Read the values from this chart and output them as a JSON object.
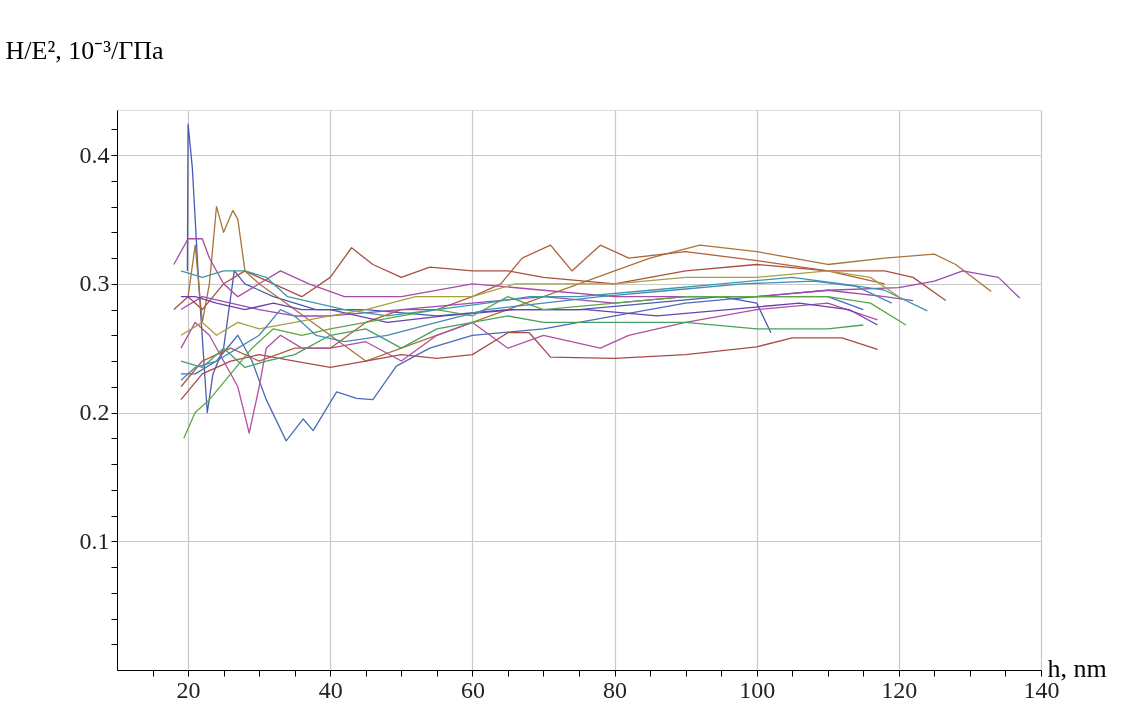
{
  "chart_data": {
    "type": "line",
    "xlabel": "h, nm",
    "ylabel": "H/E², 10⁻³/ГПа",
    "xlim": [
      10,
      140
    ],
    "ylim": [
      0,
      0.435
    ],
    "xticks": [
      {
        "value": 15,
        "label": null
      },
      20,
      {
        "value": 25,
        "label": null
      },
      {
        "value": 30,
        "label": null
      },
      {
        "value": 35,
        "label": null
      },
      40,
      {
        "value": 45,
        "label": null
      },
      {
        "value": 50,
        "label": null
      },
      {
        "value": 55,
        "label": null
      },
      60,
      {
        "value": 65,
        "label": null
      },
      {
        "value": 70,
        "label": null
      },
      {
        "value": 75,
        "label": null
      },
      80,
      {
        "value": 85,
        "label": null
      },
      {
        "value": 90,
        "label": null
      },
      {
        "value": 95,
        "label": null
      },
      100,
      {
        "value": 105,
        "label": null
      },
      {
        "value": 110,
        "label": null
      },
      {
        "value": 115,
        "label": null
      },
      120,
      {
        "value": 125,
        "label": null
      },
      {
        "value": 130,
        "label": null
      },
      {
        "value": 135,
        "label": null
      },
      140
    ],
    "yticks": [
      {
        "value": 0.02,
        "label": null
      },
      {
        "value": 0.04,
        "label": null
      },
      {
        "value": 0.06,
        "label": null
      },
      {
        "value": 0.08,
        "label": null
      },
      0.1,
      {
        "value": 0.12,
        "label": null
      },
      {
        "value": 0.14,
        "label": null
      },
      {
        "value": 0.16,
        "label": null
      },
      {
        "value": 0.18,
        "label": null
      },
      0.2,
      {
        "value": 0.22,
        "label": null
      },
      {
        "value": 0.24,
        "label": null
      },
      {
        "value": 0.26,
        "label": null
      },
      {
        "value": 0.28,
        "label": null
      },
      0.3,
      {
        "value": 0.32,
        "label": null
      },
      {
        "value": 0.34,
        "label": null
      },
      {
        "value": 0.36,
        "label": null
      },
      {
        "value": 0.38,
        "label": null
      },
      0.4,
      {
        "value": 0.42,
        "label": null
      }
    ],
    "grid": true,
    "legend": false,
    "marker": "none",
    "line_style": "solid",
    "series": [
      {
        "color": "#4a5ab0",
        "x": [
          19.9,
          20,
          20.6,
          21.5,
          22.7,
          23.5,
          25,
          26.5,
          28,
          32,
          38,
          45,
          55,
          65,
          75,
          85,
          95,
          100,
          102
        ],
        "values": [
          0.31,
          0.424,
          0.39,
          0.3,
          0.2,
          0.23,
          0.25,
          0.31,
          0.3,
          0.29,
          0.28,
          0.28,
          0.275,
          0.28,
          0.28,
          0.285,
          0.29,
          0.285,
          0.262
        ]
      },
      {
        "color": "#4a6cb8",
        "x": [
          19,
          21,
          24,
          27,
          29,
          31,
          33.8,
          36.2,
          37.6,
          40.9,
          43.7,
          46,
          49.3,
          54,
          60,
          70,
          80,
          90,
          100,
          110,
          115
        ],
        "values": [
          0.23,
          0.23,
          0.24,
          0.26,
          0.24,
          0.21,
          0.178,
          0.195,
          0.186,
          0.216,
          0.211,
          0.21,
          0.236,
          0.25,
          0.26,
          0.265,
          0.275,
          0.285,
          0.29,
          0.29,
          0.28
        ]
      },
      {
        "color": "#a8743a",
        "x": [
          20,
          21,
          22,
          23,
          24,
          25,
          26.3,
          27,
          28,
          30,
          35,
          40,
          45,
          50,
          60,
          70,
          75,
          80,
          85,
          92,
          100,
          110,
          118,
          125,
          128,
          133
        ],
        "values": [
          0.29,
          0.33,
          0.27,
          0.3,
          0.36,
          0.34,
          0.357,
          0.35,
          0.31,
          0.3,
          0.28,
          0.26,
          0.24,
          0.25,
          0.27,
          0.29,
          0.3,
          0.31,
          0.32,
          0.33,
          0.325,
          0.315,
          0.32,
          0.323,
          0.315,
          0.294
        ]
      },
      {
        "color": "#a8503f",
        "x": [
          18,
          20,
          22,
          25,
          28,
          32,
          36,
          40,
          43,
          46,
          50,
          54,
          60,
          65,
          70,
          80,
          90,
          100,
          110,
          118,
          122,
          126.6
        ],
        "values": [
          0.28,
          0.29,
          0.28,
          0.3,
          0.31,
          0.3,
          0.29,
          0.305,
          0.328,
          0.315,
          0.305,
          0.313,
          0.31,
          0.31,
          0.305,
          0.3,
          0.31,
          0.315,
          0.31,
          0.31,
          0.305,
          0.287
        ]
      },
      {
        "color": "#b0603a",
        "x": [
          19,
          22,
          26,
          30,
          35,
          40,
          45,
          50,
          55,
          60,
          64,
          67,
          71,
          74,
          78,
          82,
          90,
          100,
          110,
          118
        ],
        "values": [
          0.22,
          0.24,
          0.25,
          0.24,
          0.25,
          0.25,
          0.27,
          0.28,
          0.28,
          0.29,
          0.3,
          0.32,
          0.33,
          0.31,
          0.33,
          0.32,
          0.325,
          0.318,
          0.31,
          0.3
        ]
      },
      {
        "color": "#a84a4a",
        "x": [
          19,
          22,
          26,
          30,
          35,
          40,
          45,
          50,
          55,
          60,
          65,
          68,
          71,
          80,
          90,
          100,
          105,
          112,
          117
        ],
        "values": [
          0.21,
          0.23,
          0.24,
          0.245,
          0.24,
          0.235,
          0.24,
          0.245,
          0.242,
          0.245,
          0.262,
          0.262,
          0.243,
          0.242,
          0.245,
          0.251,
          0.258,
          0.258,
          0.249
        ]
      },
      {
        "color": "#a84aa8",
        "x": [
          18,
          20,
          22,
          23,
          25,
          27,
          30,
          33,
          37,
          42,
          50,
          60,
          70,
          80,
          90,
          100,
          110,
          118,
          122
        ],
        "values": [
          0.315,
          0.335,
          0.335,
          0.32,
          0.3,
          0.29,
          0.3,
          0.31,
          0.3,
          0.29,
          0.29,
          0.3,
          0.295,
          0.29,
          0.29,
          0.29,
          0.295,
          0.29,
          0.287
        ]
      },
      {
        "color": "#b04fa0",
        "x": [
          19,
          21,
          23,
          25,
          27,
          28.6,
          30,
          31,
          33,
          36,
          40,
          45,
          50,
          55,
          60,
          65,
          70,
          78,
          82,
          90,
          100,
          110,
          117
        ],
        "values": [
          0.25,
          0.27,
          0.26,
          0.24,
          0.22,
          0.184,
          0.22,
          0.25,
          0.26,
          0.25,
          0.25,
          0.255,
          0.24,
          0.26,
          0.27,
          0.25,
          0.26,
          0.25,
          0.26,
          0.27,
          0.28,
          0.285,
          0.272
        ]
      },
      {
        "color": "#9a4ab8",
        "x": [
          19,
          22,
          26,
          30,
          35,
          40,
          50,
          60,
          70,
          80,
          90,
          100,
          110,
          120,
          125,
          129,
          134,
          137
        ],
        "values": [
          0.28,
          0.29,
          0.285,
          0.28,
          0.275,
          0.275,
          0.28,
          0.285,
          0.29,
          0.285,
          0.29,
          0.29,
          0.295,
          0.297,
          0.302,
          0.31,
          0.305,
          0.289
        ]
      },
      {
        "color": "#6a40b0",
        "x": [
          19,
          21,
          24,
          28,
          32,
          36,
          40,
          48,
          56,
          66,
          76,
          86,
          96,
          106,
          113,
          117
        ],
        "values": [
          0.29,
          0.29,
          0.285,
          0.28,
          0.285,
          0.28,
          0.28,
          0.27,
          0.275,
          0.28,
          0.28,
          0.275,
          0.28,
          0.285,
          0.28,
          0.268
        ]
      },
      {
        "color": "#5aa848",
        "x": [
          19.4,
          21,
          23,
          26,
          29,
          32,
          36,
          40,
          45,
          50,
          55,
          60,
          65,
          70,
          80,
          90,
          100,
          110,
          116,
          121
        ],
        "values": [
          0.18,
          0.2,
          0.21,
          0.23,
          0.25,
          0.265,
          0.26,
          0.265,
          0.27,
          0.275,
          0.28,
          0.275,
          0.29,
          0.28,
          0.285,
          0.29,
          0.29,
          0.29,
          0.285,
          0.268
        ]
      },
      {
        "color": "#48a060",
        "x": [
          19,
          22,
          25,
          28,
          31,
          35,
          40,
          45,
          50,
          55,
          60,
          65,
          70,
          80,
          90,
          100,
          110,
          115
        ],
        "values": [
          0.24,
          0.235,
          0.25,
          0.235,
          0.24,
          0.245,
          0.26,
          0.265,
          0.25,
          0.265,
          0.27,
          0.275,
          0.27,
          0.27,
          0.27,
          0.265,
          0.265,
          0.268
        ]
      },
      {
        "color": "#3a9aa8",
        "x": [
          19,
          22,
          25,
          28,
          31,
          34,
          38,
          42,
          48,
          55,
          62,
          68,
          75,
          85,
          95,
          105,
          112,
          118,
          124
        ],
        "values": [
          0.31,
          0.305,
          0.31,
          0.31,
          0.305,
          0.29,
          0.285,
          0.28,
          0.275,
          0.28,
          0.285,
          0.29,
          0.29,
          0.295,
          0.3,
          0.305,
          0.3,
          0.295,
          0.279
        ]
      },
      {
        "color": "#a8a040",
        "x": [
          19,
          22,
          24,
          27,
          30,
          35,
          40,
          45,
          52,
          60,
          66,
          72,
          80,
          90,
          100,
          110,
          116,
          120
        ],
        "values": [
          0.26,
          0.27,
          0.26,
          0.27,
          0.265,
          0.27,
          0.275,
          0.28,
          0.29,
          0.29,
          0.3,
          0.3,
          0.3,
          0.305,
          0.305,
          0.31,
          0.305,
          0.29
        ]
      },
      {
        "color": "#4a88b8",
        "x": [
          19,
          21,
          24,
          27,
          30,
          33,
          35,
          38,
          42,
          48,
          55,
          62,
          70,
          78,
          88,
          98,
          108,
          114,
          119
        ],
        "values": [
          0.225,
          0.235,
          0.24,
          0.25,
          0.26,
          0.28,
          0.275,
          0.26,
          0.255,
          0.26,
          0.27,
          0.28,
          0.285,
          0.29,
          0.295,
          0.3,
          0.302,
          0.298,
          0.285
        ]
      }
    ]
  }
}
